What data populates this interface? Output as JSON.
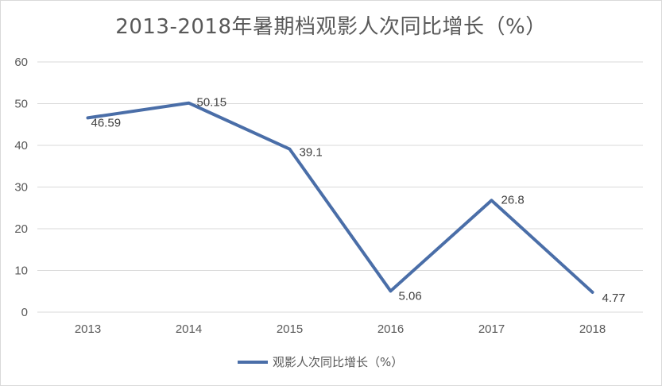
{
  "chart_data": {
    "type": "line",
    "title": "2013-2018年暑期档观影人次同比增长（%）",
    "categories": [
      "2013",
      "2014",
      "2015",
      "2016",
      "2017",
      "2018"
    ],
    "series": [
      {
        "name": "观影人次同比增长（%）",
        "values": [
          46.59,
          50.15,
          39.1,
          5.06,
          26.8,
          4.77
        ],
        "data_labels": [
          "46.59",
          "50.15",
          "39.1",
          "5.06",
          "26.8",
          "4.77"
        ],
        "color": "#4a6ea8"
      }
    ],
    "ylim": [
      0,
      60
    ],
    "yticks": [
      0,
      10,
      20,
      30,
      40,
      50,
      60
    ],
    "grid": true,
    "legend_position": "bottom",
    "xlabel": "",
    "ylabel": ""
  }
}
